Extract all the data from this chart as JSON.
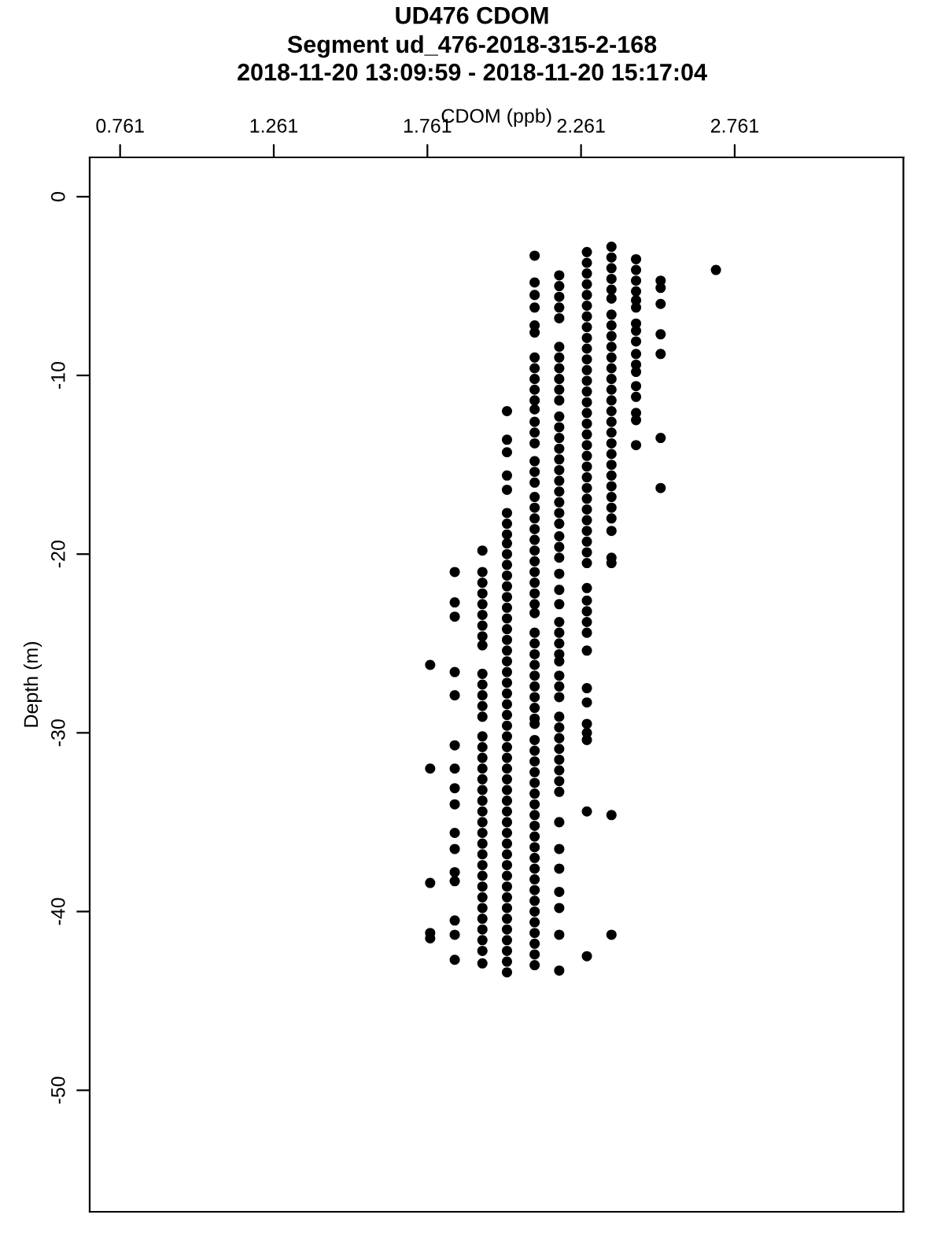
{
  "chart_data": {
    "type": "scatter",
    "title": "UD476 CDOM",
    "subtitle": "Segment ud_476-2018-315-2-168\n2018-11-20 13:09:59 - 2018-11-20 15:17:04",
    "xlabel": "CDOM (ppb)",
    "ylabel": "Depth (m)",
    "marker": "circle",
    "xlim": [
      0.662,
      3.31
    ],
    "xticks": [
      0.761,
      1.261,
      1.761,
      2.261,
      2.761
    ],
    "ylim": [
      -56.8,
      2.2
    ],
    "yticks": [
      0,
      -10,
      -20,
      -30,
      -40,
      -50
    ],
    "series": [
      {
        "color": "#000000",
        "x": [
          1.77,
          1.77,
          1.77,
          1.77,
          1.77
        ],
        "values": [
          -26.2,
          -32.0,
          -38.4,
          -41.2,
          -41.5
        ]
      },
      {
        "color": "#000000",
        "x": [
          1.85,
          1.85,
          1.85,
          1.85,
          1.85,
          1.85,
          1.85,
          1.85,
          1.85,
          1.85,
          1.85,
          1.85,
          1.85,
          1.85,
          1.85,
          1.85
        ],
        "values": [
          -21.0,
          -22.7,
          -23.5,
          -26.6,
          -27.9,
          -30.7,
          -32.0,
          -33.1,
          -34.0,
          -35.6,
          -36.5,
          -37.8,
          -38.3,
          -40.5,
          -41.3,
          -42.7
        ]
      },
      {
        "color": "#000000",
        "x": [
          1.94,
          1.94,
          1.94,
          1.94,
          1.94,
          1.94,
          1.94,
          1.94,
          1.94,
          1.94,
          1.94,
          1.94,
          1.94,
          1.94,
          1.94,
          1.94,
          1.94,
          1.94,
          1.94,
          1.94,
          1.94,
          1.94,
          1.94,
          1.94,
          1.94,
          1.94,
          1.94,
          1.94,
          1.94,
          1.94,
          1.94,
          1.94,
          1.94,
          1.94,
          1.94,
          1.94
        ],
        "values": [
          -19.8,
          -21.0,
          -21.6,
          -22.2,
          -22.8,
          -23.4,
          -24.0,
          -24.6,
          -25.1,
          -26.7,
          -27.3,
          -27.9,
          -28.5,
          -29.1,
          -30.2,
          -30.8,
          -31.4,
          -32.0,
          -32.6,
          -33.2,
          -33.8,
          -34.4,
          -35.0,
          -35.6,
          -36.2,
          -36.8,
          -37.4,
          -38.0,
          -38.6,
          -39.2,
          -39.8,
          -40.4,
          -41.0,
          -41.6,
          -42.2,
          -42.9
        ]
      },
      {
        "color": "#000000",
        "x": [
          2.02,
          2.02,
          2.02,
          2.02,
          2.02,
          2.02,
          2.02,
          2.02,
          2.02,
          2.02,
          2.02,
          2.02,
          2.02,
          2.02,
          2.02,
          2.02,
          2.02,
          2.02,
          2.02,
          2.02,
          2.02,
          2.02,
          2.02,
          2.02,
          2.02,
          2.02,
          2.02,
          2.02,
          2.02,
          2.02,
          2.02,
          2.02,
          2.02,
          2.02,
          2.02,
          2.02,
          2.02,
          2.02,
          2.02,
          2.02,
          2.02,
          2.02,
          2.02,
          2.02,
          2.02,
          2.02,
          2.02,
          2.02,
          2.02
        ],
        "values": [
          -12.0,
          -13.6,
          -14.3,
          -15.6,
          -16.4,
          -17.7,
          -18.3,
          -18.9,
          -19.4,
          -20.0,
          -20.6,
          -21.2,
          -21.8,
          -22.4,
          -23.0,
          -23.6,
          -24.2,
          -24.8,
          -25.4,
          -26.0,
          -26.6,
          -27.2,
          -27.8,
          -28.4,
          -29.0,
          -29.6,
          -30.2,
          -30.8,
          -31.4,
          -32.0,
          -32.6,
          -33.2,
          -33.8,
          -34.4,
          -35.0,
          -35.6,
          -36.2,
          -36.8,
          -37.4,
          -38.0,
          -38.6,
          -39.2,
          -39.8,
          -40.4,
          -41.0,
          -41.6,
          -42.2,
          -42.8,
          -43.4
        ]
      },
      {
        "color": "#000000",
        "x": [
          2.11,
          2.11,
          2.11,
          2.11,
          2.11,
          2.11,
          2.11,
          2.11,
          2.11,
          2.11,
          2.11,
          2.11,
          2.11,
          2.11,
          2.11,
          2.11,
          2.11,
          2.11,
          2.11,
          2.11,
          2.11,
          2.11,
          2.11,
          2.11,
          2.11,
          2.11,
          2.11,
          2.11,
          2.11,
          2.11,
          2.11,
          2.11,
          2.11,
          2.11,
          2.11,
          2.11,
          2.11,
          2.11,
          2.11,
          2.11,
          2.11,
          2.11,
          2.11,
          2.11,
          2.11,
          2.11,
          2.11,
          2.11,
          2.11,
          2.11,
          2.11,
          2.11,
          2.11,
          2.11,
          2.11,
          2.11,
          2.11,
          2.11,
          2.11,
          2.11,
          2.11,
          2.11
        ],
        "values": [
          -3.3,
          -4.8,
          -5.5,
          -6.2,
          -7.2,
          -7.6,
          -9.0,
          -9.6,
          -10.2,
          -10.8,
          -11.4,
          -11.9,
          -12.6,
          -13.2,
          -13.8,
          -14.8,
          -15.4,
          -16.0,
          -16.8,
          -17.4,
          -18.0,
          -18.6,
          -19.2,
          -19.8,
          -20.4,
          -21.0,
          -21.6,
          -22.2,
          -22.8,
          -23.3,
          -24.4,
          -25.0,
          -25.6,
          -26.2,
          -26.8,
          -27.4,
          -28.0,
          -28.6,
          -29.2,
          -29.5,
          -30.4,
          -31.0,
          -31.6,
          -32.2,
          -32.8,
          -33.4,
          -34.0,
          -34.6,
          -35.2,
          -35.8,
          -36.4,
          -37.0,
          -37.6,
          -38.2,
          -38.8,
          -39.4,
          -40.0,
          -40.6,
          -41.2,
          -41.8,
          -42.4,
          -43.0
        ]
      },
      {
        "color": "#000000",
        "x": [
          2.19,
          2.19,
          2.19,
          2.19,
          2.19,
          2.19,
          2.19,
          2.19,
          2.19,
          2.19,
          2.19,
          2.19,
          2.19,
          2.19,
          2.19,
          2.19,
          2.19,
          2.19,
          2.19,
          2.19,
          2.19,
          2.19,
          2.19,
          2.19,
          2.19,
          2.19,
          2.19,
          2.19,
          2.19,
          2.19,
          2.19,
          2.19,
          2.19,
          2.19,
          2.19,
          2.19,
          2.19,
          2.19,
          2.19,
          2.19,
          2.19,
          2.19,
          2.19,
          2.19,
          2.19,
          2.19,
          2.19,
          2.19,
          2.19,
          2.19,
          2.19
        ],
        "values": [
          -4.4,
          -5.0,
          -5.6,
          -6.2,
          -6.8,
          -8.4,
          -9.0,
          -9.6,
          -10.2,
          -10.8,
          -11.4,
          -12.3,
          -12.9,
          -13.5,
          -14.1,
          -14.7,
          -15.3,
          -15.9,
          -16.5,
          -17.1,
          -17.7,
          -18.3,
          -19.0,
          -19.6,
          -20.2,
          -21.1,
          -22.0,
          -22.8,
          -23.8,
          -24.4,
          -25.0,
          -25.6,
          -26.0,
          -26.8,
          -27.4,
          -28.0,
          -29.1,
          -29.7,
          -30.3,
          -30.9,
          -31.5,
          -32.1,
          -32.7,
          -33.3,
          -35.0,
          -36.5,
          -37.6,
          -38.9,
          -39.8,
          -41.3,
          -43.3
        ]
      },
      {
        "color": "#000000",
        "x": [
          2.28,
          2.28,
          2.28,
          2.28,
          2.28,
          2.28,
          2.28,
          2.28,
          2.28,
          2.28,
          2.28,
          2.28,
          2.28,
          2.28,
          2.28,
          2.28,
          2.28,
          2.28,
          2.28,
          2.28,
          2.28,
          2.28,
          2.28,
          2.28,
          2.28,
          2.28,
          2.28,
          2.28,
          2.28,
          2.28,
          2.28,
          2.28,
          2.28,
          2.28,
          2.28,
          2.28,
          2.28,
          2.28,
          2.28,
          2.28,
          2.28,
          2.28,
          2.28
        ],
        "values": [
          -3.1,
          -3.7,
          -4.3,
          -4.9,
          -5.5,
          -6.1,
          -6.7,
          -7.3,
          -7.9,
          -8.5,
          -9.1,
          -9.7,
          -10.3,
          -10.9,
          -11.5,
          -12.1,
          -12.7,
          -13.3,
          -13.9,
          -14.5,
          -15.1,
          -15.7,
          -16.3,
          -16.9,
          -17.5,
          -18.1,
          -18.7,
          -19.3,
          -19.9,
          -20.5,
          -21.9,
          -22.6,
          -23.2,
          -23.8,
          -24.4,
          -25.4,
          -27.5,
          -28.3,
          -29.5,
          -30.0,
          -30.4,
          -34.4,
          -42.5
        ]
      },
      {
        "color": "#000000",
        "x": [
          2.36,
          2.36,
          2.36,
          2.36,
          2.36,
          2.36,
          2.36,
          2.36,
          2.36,
          2.36,
          2.36,
          2.36,
          2.36,
          2.36,
          2.36,
          2.36,
          2.36,
          2.36,
          2.36,
          2.36,
          2.36,
          2.36,
          2.36,
          2.36,
          2.36,
          2.36,
          2.36,
          2.36,
          2.36,
          2.36,
          2.36
        ],
        "values": [
          -2.8,
          -3.4,
          -4.0,
          -4.6,
          -5.2,
          -5.7,
          -6.6,
          -7.2,
          -7.8,
          -8.4,
          -9.0,
          -9.6,
          -10.2,
          -10.8,
          -11.4,
          -12.0,
          -12.6,
          -13.2,
          -13.8,
          -14.4,
          -15.0,
          -15.6,
          -16.2,
          -16.8,
          -17.4,
          -18.0,
          -18.7,
          -20.2,
          -20.5,
          -34.6,
          -41.3
        ]
      },
      {
        "color": "#000000",
        "x": [
          2.44,
          2.44,
          2.44,
          2.44,
          2.44,
          2.44,
          2.44,
          2.44,
          2.44,
          2.44,
          2.44,
          2.44,
          2.44,
          2.44,
          2.44,
          2.44,
          2.44
        ],
        "values": [
          -3.5,
          -4.1,
          -4.7,
          -5.3,
          -5.8,
          -6.2,
          -7.1,
          -7.5,
          -8.1,
          -8.8,
          -9.4,
          -9.8,
          -10.6,
          -11.2,
          -12.1,
          -12.5,
          -13.9
        ]
      },
      {
        "color": "#000000",
        "x": [
          2.52,
          2.52,
          2.52,
          2.52,
          2.52,
          2.52,
          2.52
        ],
        "values": [
          -4.7,
          -5.1,
          -6.0,
          -7.7,
          -8.8,
          -13.5,
          -16.3
        ]
      },
      {
        "color": "#000000",
        "x": [
          2.7
        ],
        "values": [
          -4.1
        ]
      }
    ]
  }
}
